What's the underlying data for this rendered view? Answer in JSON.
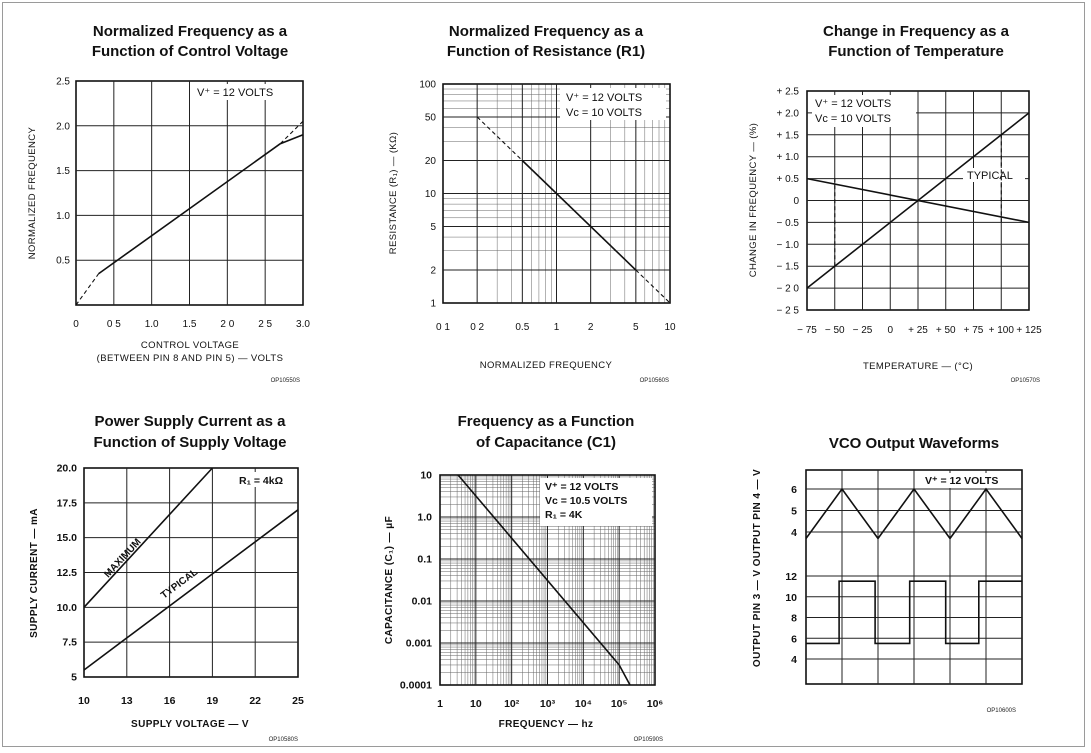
{
  "chart_data": [
    {
      "type": "line",
      "title_lines": [
        "Normalized Frequency as a",
        "Function of Control Voltage"
      ],
      "xlabel_lines": [
        "CONTROL VOLTAGE",
        "(BETWEEN PIN 8 AND PIN 5) — VOLTS"
      ],
      "ylabel": "NORMALIZED FREQUENCY",
      "xlim": [
        0,
        3.0
      ],
      "ylim": [
        0,
        2.5
      ],
      "x_ticks": [
        0,
        0.5,
        1.0,
        1.5,
        2.0,
        2.5,
        3.0
      ],
      "x_tick_labels": [
        "0",
        "0 5",
        "1.0",
        "1.5",
        "2 0",
        "2 5",
        "3.0"
      ],
      "y_ticks": [
        0.5,
        1.0,
        1.5,
        2.0,
        2.5
      ],
      "y_tick_labels": [
        "0.5",
        "1.0",
        "1.5",
        "2.0",
        "2.5"
      ],
      "annotations": [
        "V⁺ = 12 VOLTS"
      ],
      "code": "OP10550S",
      "series": [
        {
          "style": "solid",
          "x": [
            0.3,
            2.7
          ],
          "y": [
            0.35,
            1.8
          ]
        },
        {
          "style": "dashed",
          "x": [
            0,
            0.3
          ],
          "y": [
            0.0,
            0.35
          ]
        },
        {
          "style": "dashed",
          "x": [
            2.7,
            3.0
          ],
          "y": [
            1.8,
            2.05
          ]
        },
        {
          "style": "solid",
          "x": [
            2.7,
            3.0
          ],
          "y": [
            1.8,
            1.9
          ]
        }
      ]
    },
    {
      "type": "line",
      "title_lines": [
        "Normalized Frequency as a",
        "Function of Resistance (R1)"
      ],
      "xlabel": "NORMALIZED FREQUENCY",
      "ylabel": "RESISTANCE (R₁) — (KΩ)",
      "xscale": "log",
      "yscale": "log",
      "xlim": [
        0.1,
        10
      ],
      "ylim": [
        1,
        100
      ],
      "x_ticks": [
        0.1,
        0.2,
        0.5,
        1,
        2,
        5,
        10
      ],
      "x_tick_labels": [
        "0 1",
        "0 2",
        "0.5",
        "1",
        "2",
        "5",
        "10"
      ],
      "y_ticks": [
        1,
        2,
        5,
        10,
        20,
        50,
        100
      ],
      "y_tick_labels": [
        "1",
        "2",
        "5",
        "10",
        "20",
        "50",
        "100"
      ],
      "annotations": [
        "V⁺ = 12 VOLTS",
        "Vᴄ = 10 VOLTS"
      ],
      "code": "OP10560S",
      "series": [
        {
          "style": "solid",
          "x": [
            0.5,
            5
          ],
          "y": [
            20,
            2
          ]
        },
        {
          "style": "dashed",
          "x": [
            0.2,
            0.5
          ],
          "y": [
            50,
            20
          ]
        },
        {
          "style": "dashed",
          "x": [
            5,
            10
          ],
          "y": [
            2,
            1
          ]
        }
      ]
    },
    {
      "type": "line",
      "title_lines": [
        "Change in Frequency as a",
        "Function of Temperature"
      ],
      "xlabel": "TEMPERATURE — (°C)",
      "ylabel": "CHANGE IN FREQUENCY — (%)",
      "xlim": [
        -75,
        125
      ],
      "ylim": [
        -2.5,
        2.5
      ],
      "x_ticks": [
        -75,
        -50,
        -25,
        0,
        25,
        50,
        75,
        100,
        125
      ],
      "x_tick_labels": [
        "− 75",
        "− 50",
        "− 25",
        "0",
        "+ 25",
        "+ 50",
        "+ 75",
        "+ 100",
        "+ 125"
      ],
      "y_ticks": [
        2.5,
        2.0,
        1.5,
        1.0,
        0.5,
        0,
        -0.5,
        -1.0,
        -1.5,
        -2.0,
        -2.5
      ],
      "y_tick_labels": [
        "+ 2.5",
        "+ 2.0",
        "+ 1.5",
        "+ 1.0",
        "+ 0.5",
        "0",
        "− 0.5",
        "− 1.0",
        "− 1.5",
        "− 2 0",
        "− 2 5"
      ],
      "annotations": [
        "V⁺ = 12 VOLTS",
        "Vᴄ = 10 VOLTS",
        "TYPICAL"
      ],
      "code": "OP10570S",
      "series": [
        {
          "style": "solid",
          "x": [
            -75,
            125
          ],
          "y": [
            -2.0,
            2.0
          ]
        },
        {
          "style": "solid",
          "x": [
            -75,
            125
          ],
          "y": [
            0.5,
            -0.5
          ]
        },
        {
          "style": "dashed",
          "x": [
            -50,
            -50
          ],
          "y": [
            -1.5,
            0.5
          ]
        },
        {
          "style": "dashed",
          "x": [
            100,
            100
          ],
          "y": [
            -0.5,
            1.5
          ]
        }
      ]
    },
    {
      "type": "line",
      "title_lines": [
        "Power Supply Current as a",
        "Function of Supply Voltage"
      ],
      "xlabel": "SUPPLY VOLTAGE — V",
      "ylabel": "SUPPLY CURRENT — mA",
      "xlim": [
        10,
        25
      ],
      "ylim": [
        5,
        20
      ],
      "x_ticks": [
        10,
        13,
        16,
        19,
        22,
        25
      ],
      "x_tick_labels": [
        "10",
        "13",
        "16",
        "19",
        "22",
        "25"
      ],
      "y_ticks": [
        5,
        7.5,
        10.0,
        12.5,
        15.0,
        17.5,
        20.0
      ],
      "y_tick_labels": [
        "5",
        "7.5",
        "10.0",
        "12.5",
        "15.0",
        "17.5",
        "20.0"
      ],
      "annotations": [
        "R₁ = 4kΩ"
      ],
      "code": "OP10580S",
      "series": [
        {
          "name": "MAXIMUM",
          "style": "solid",
          "x": [
            10,
            19
          ],
          "y": [
            10.0,
            20.0
          ]
        },
        {
          "name": "TYPICAL",
          "style": "solid",
          "x": [
            10,
            25
          ],
          "y": [
            5.5,
            17.0
          ]
        }
      ]
    },
    {
      "type": "line",
      "title_lines": [
        "Frequency as a Function",
        "of Capacitance (C1)"
      ],
      "xlabel": "FREQUENCY — hz",
      "ylabel": "CAPACITANCE (C₁) — μF",
      "xscale": "log",
      "yscale": "log",
      "xlim": [
        1,
        1000000
      ],
      "ylim": [
        0.0001,
        10
      ],
      "x_ticks": [
        1,
        10,
        100,
        1000,
        10000,
        100000,
        1000000
      ],
      "x_tick_labels": [
        "1",
        "10",
        "10²",
        "10³",
        "10⁴",
        "10⁵",
        "10⁶"
      ],
      "y_ticks": [
        0.0001,
        0.001,
        0.01,
        0.1,
        1.0,
        10
      ],
      "y_tick_labels": [
        "0.0001",
        "0.001",
        "0.01",
        "0.1",
        "1.0",
        "10"
      ],
      "annotations": [
        "V⁺ = 12 VOLTS",
        "Vᴄ = 10.5 VOLTS",
        "R₁ = 4K"
      ],
      "code": "OP10590S",
      "series": [
        {
          "style": "solid",
          "x": [
            3.2,
            100000
          ],
          "y": [
            10,
            0.0003
          ]
        },
        {
          "style": "solid",
          "x": [
            100000,
            200000
          ],
          "y": [
            0.0003,
            0.0001
          ]
        }
      ]
    },
    {
      "type": "line",
      "title_lines": [
        "VCO Output Waveforms"
      ],
      "ylabel": "OUTPUT PIN 3 — V    OUTPUT PIN 4 — V",
      "annotations": [
        "V⁺ = 12 VOLTS"
      ],
      "upper_ticks": [
        6,
        5,
        4
      ],
      "lower_ticks": [
        12,
        10,
        8,
        6,
        4
      ],
      "code": "OP10600S",
      "series": [
        {
          "name": "OUTPUT PIN 4",
          "style": "solid",
          "x": [
            0,
            0.25,
            0.5,
            0.75,
            1.0,
            1.25,
            1.5
          ],
          "y": [
            3.7,
            6.0,
            3.7,
            6.0,
            3.7,
            6.0,
            3.7
          ]
        },
        {
          "name": "OUTPUT PIN 3",
          "style": "square",
          "x": [
            0,
            0.23,
            0.23,
            0.48,
            0.48,
            0.72,
            0.72,
            0.97,
            0.97,
            1.2,
            1.2,
            1.5
          ],
          "y": [
            5.5,
            5.5,
            11.5,
            11.5,
            5.5,
            5.5,
            11.5,
            11.5,
            5.5,
            5.5,
            11.5,
            11.5
          ]
        }
      ]
    }
  ]
}
